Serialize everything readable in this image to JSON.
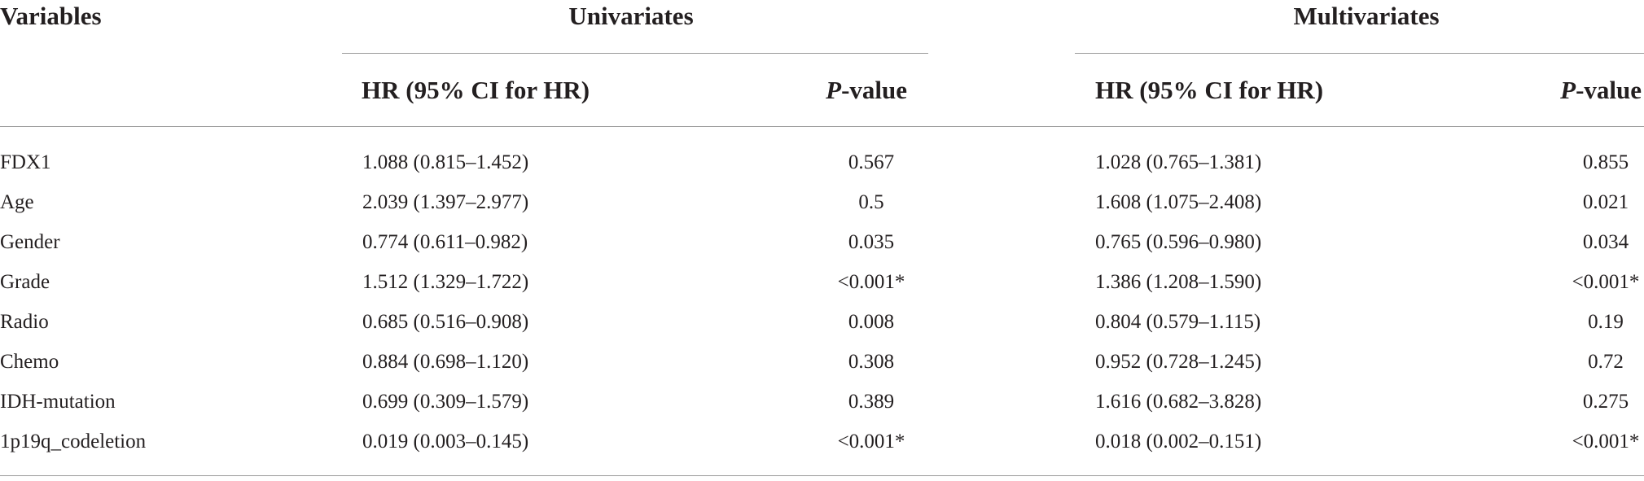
{
  "table": {
    "header": {
      "variables": "Variables",
      "univariates": "Univariates",
      "multivariates": "Multivariates",
      "hr_label": "HR (95% CI for HR)",
      "p_italic": "P",
      "p_suffix": "-value"
    },
    "rows": [
      {
        "variable": "FDX1",
        "uni_hr": "1.088 (0.815–1.452)",
        "uni_p": "0.567",
        "multi_hr": "1.028 (0.765–1.381)",
        "multi_p": "0.855"
      },
      {
        "variable": "Age",
        "uni_hr": "2.039 (1.397–2.977)",
        "uni_p": "0.5",
        "multi_hr": "1.608 (1.075–2.408)",
        "multi_p": "0.021"
      },
      {
        "variable": "Gender",
        "uni_hr": "0.774 (0.611–0.982)",
        "uni_p": "0.035",
        "multi_hr": "0.765 (0.596–0.980)",
        "multi_p": "0.034"
      },
      {
        "variable": "Grade",
        "uni_hr": "1.512 (1.329–1.722)",
        "uni_p": "<0.001*",
        "multi_hr": "1.386 (1.208–1.590)",
        "multi_p": "<0.001*"
      },
      {
        "variable": "Radio",
        "uni_hr": "0.685 (0.516–0.908)",
        "uni_p": "0.008",
        "multi_hr": "0.804 (0.579–1.115)",
        "multi_p": "0.19"
      },
      {
        "variable": "Chemo",
        "uni_hr": "0.884 (0.698–1.120)",
        "uni_p": "0.308",
        "multi_hr": "0.952 (0.728–1.245)",
        "multi_p": "0.72"
      },
      {
        "variable": "IDH-mutation",
        "uni_hr": "0.699 (0.309–1.579)",
        "uni_p": "0.389",
        "multi_hr": "1.616 (0.682–3.828)",
        "multi_p": "0.275"
      },
      {
        "variable": "1p19q_codeletion",
        "uni_hr": "0.019 (0.003–0.145)",
        "uni_p": "<0.001*",
        "multi_hr": "0.018 (0.002–0.151)",
        "multi_p": "<0.001*"
      }
    ]
  }
}
